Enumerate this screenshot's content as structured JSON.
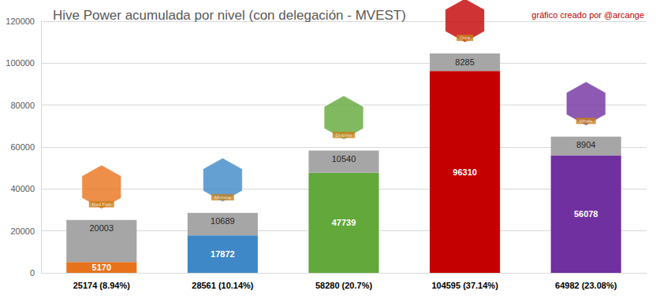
{
  "chart_data": {
    "type": "bar",
    "title": "Hive Power acumulada por nivel (con delegación - MVEST)",
    "annotations": [
      "gráfico creado por @arcange"
    ],
    "categories": [
      "25174 (8.94%)",
      "28561 (10.14%)",
      "58280 (20.7%)",
      "104595 (37.14%)",
      "64982 (23.08%)"
    ],
    "badges": [
      "Red Fish",
      "Minnow",
      "Dolphin",
      "Orca",
      "Whale"
    ],
    "series": [
      {
        "colors": [
          "#e8731c",
          "#3f88c8",
          "#62a83a",
          "#c40000",
          "#7030a0"
        ],
        "values": [
          5170,
          17872,
          47739,
          96310,
          56078
        ]
      },
      {
        "color": "#a6a6a6",
        "values": [
          20003,
          10689,
          10540,
          8285,
          8904
        ]
      }
    ],
    "ylim": [
      0,
      120000
    ],
    "yticks": [
      0,
      20000,
      40000,
      60000,
      80000,
      100000,
      120000
    ],
    "grid": true,
    "stacked": true,
    "data_labels": true
  }
}
